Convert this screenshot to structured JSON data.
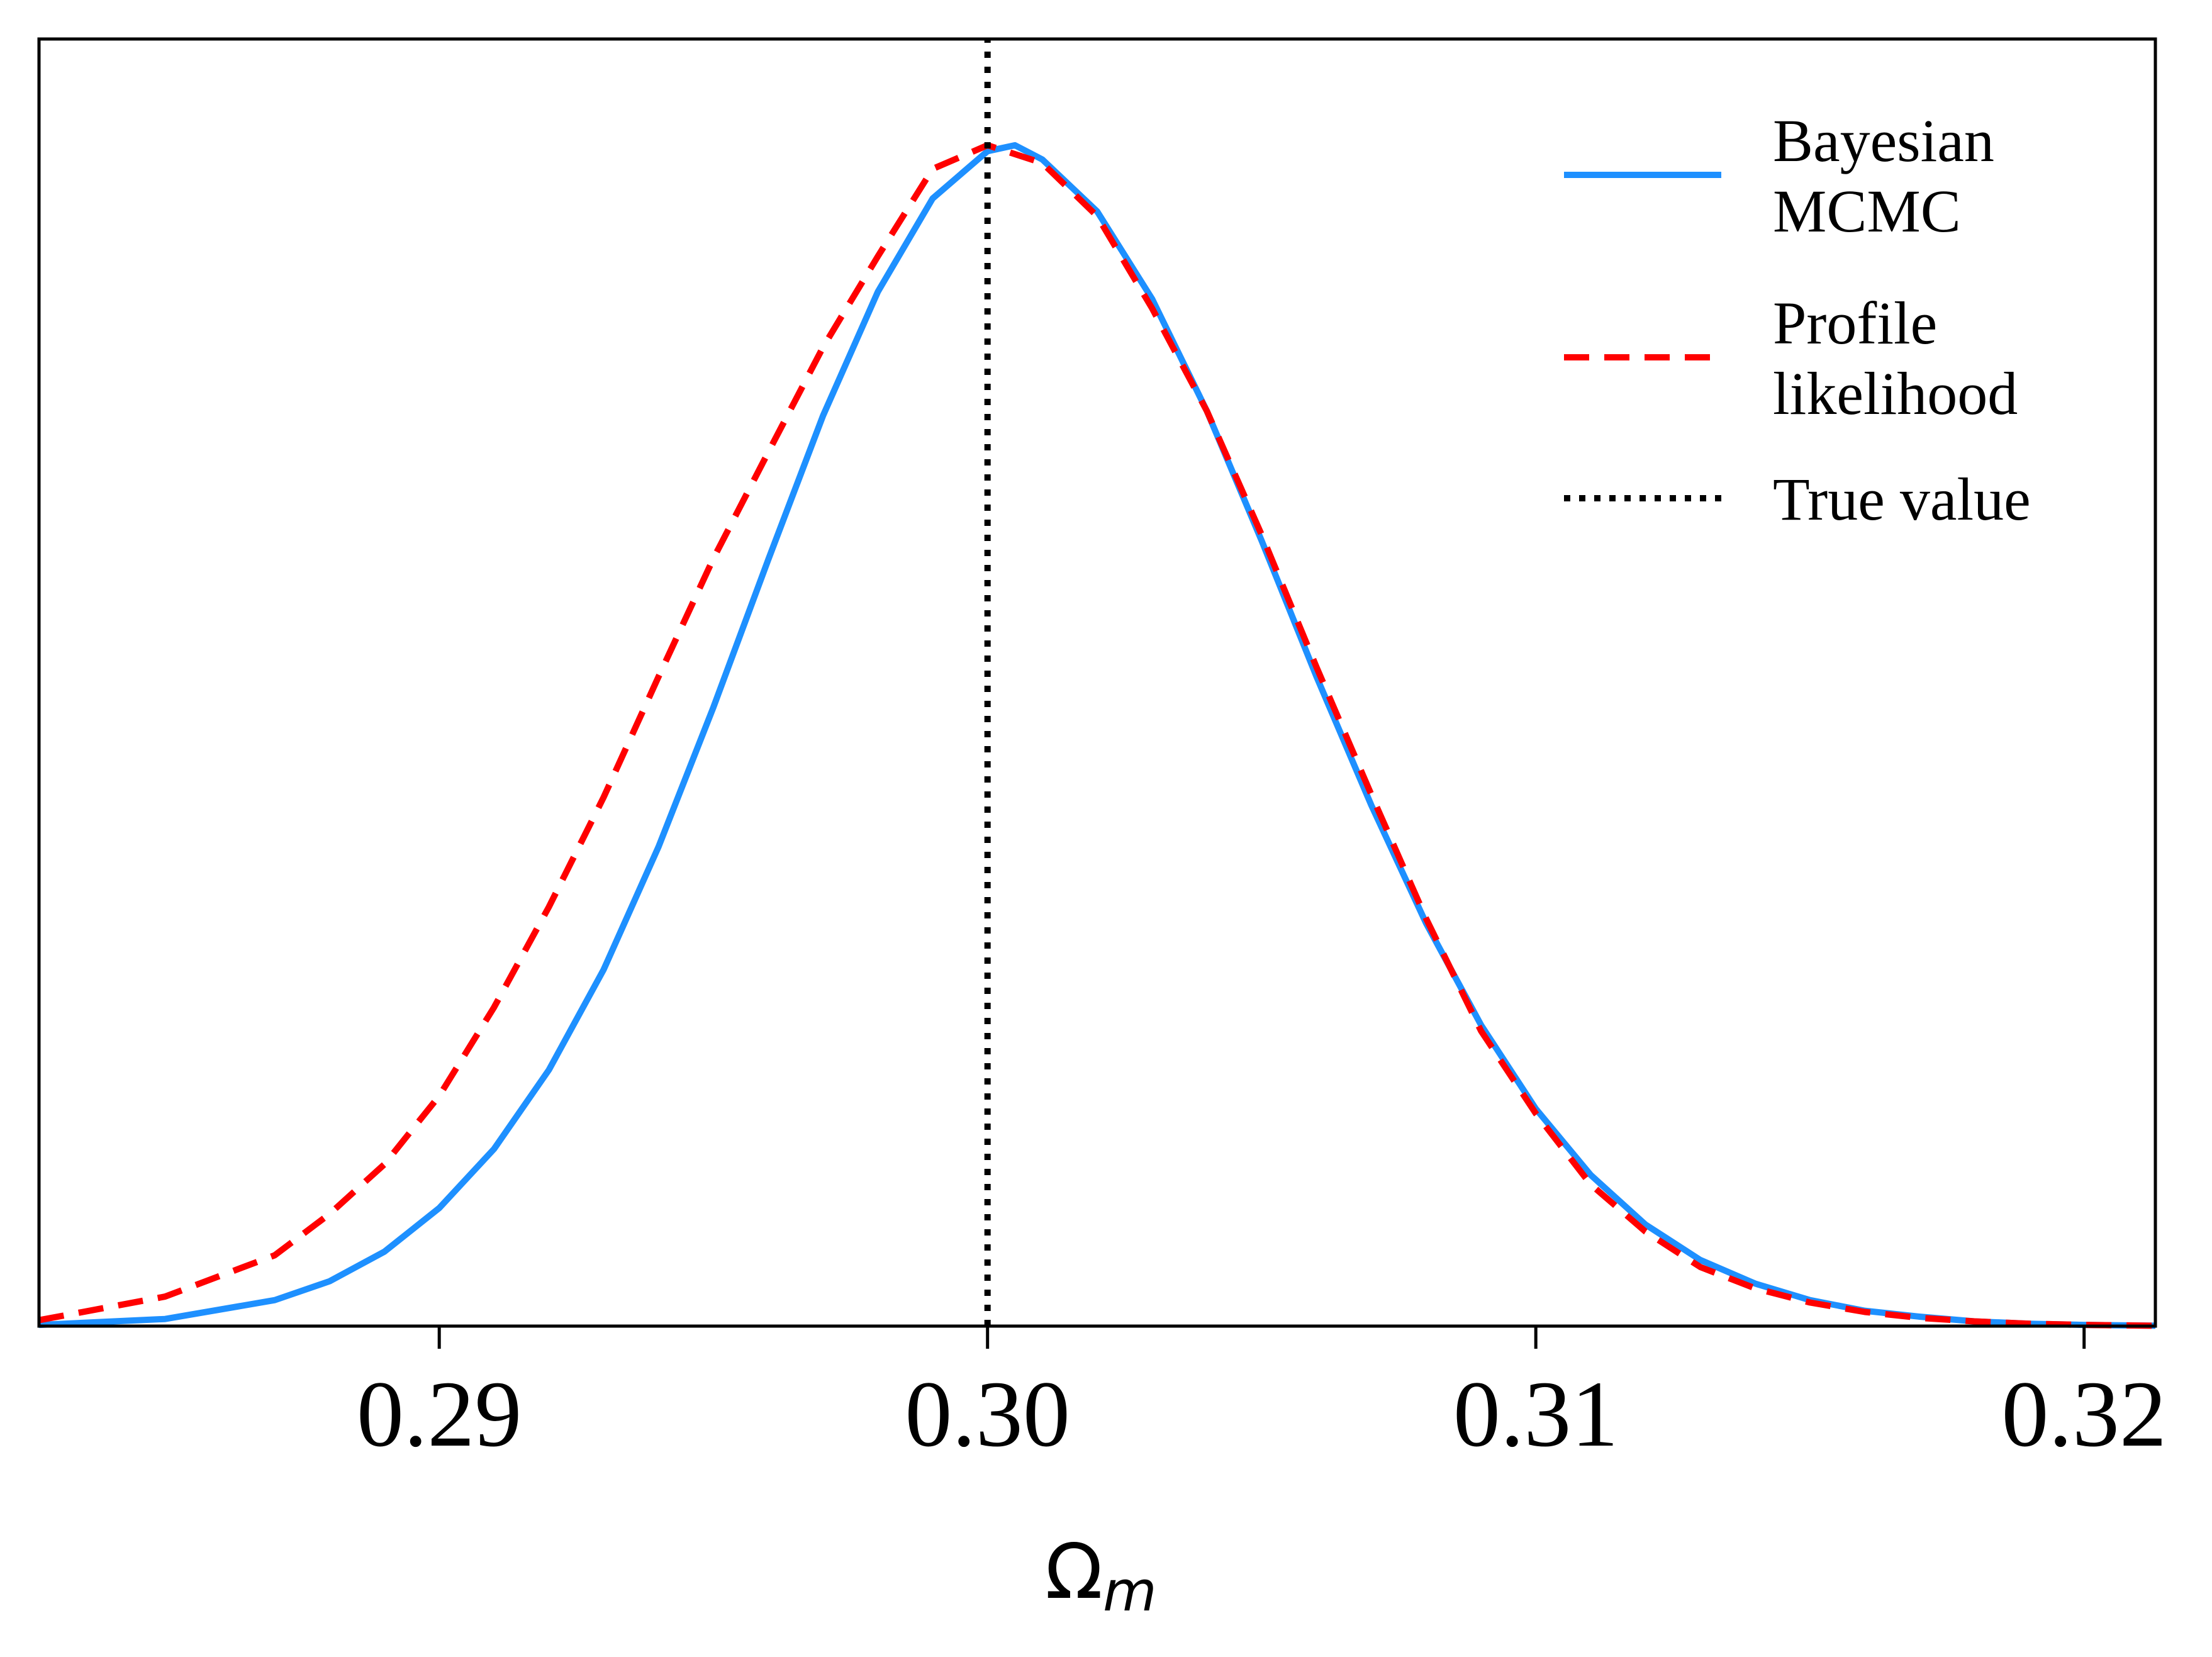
{
  "chart_data": {
    "type": "line",
    "xlabel_main": "Ω",
    "xlabel_sub": "m",
    "xlim": [
      0.2827,
      0.3213
    ],
    "ylim": [
      0,
      1.09
    ],
    "x_ticks": [
      0.29,
      0.3,
      0.31,
      0.32
    ],
    "x_tick_labels": [
      "0.29",
      "0.30",
      "0.31",
      "0.32"
    ],
    "y_ticks_visible": false,
    "grid": false,
    "legend_position": "top-right",
    "true_value": 0.3,
    "series": [
      {
        "name_lines": [
          "Bayesian",
          "MCMC"
        ],
        "color": "#1e90ff",
        "style": "solid",
        "x": [
          0.2827,
          0.285,
          0.287,
          0.288,
          0.289,
          0.29,
          0.291,
          0.292,
          0.293,
          0.294,
          0.295,
          0.296,
          0.297,
          0.298,
          0.299,
          0.3,
          0.3005,
          0.301,
          0.302,
          0.303,
          0.304,
          0.305,
          0.306,
          0.307,
          0.308,
          0.309,
          0.31,
          0.311,
          0.312,
          0.313,
          0.314,
          0.315,
          0.316,
          0.317,
          0.318,
          0.319,
          0.32,
          0.3213
        ],
        "y": [
          0.001,
          0.006,
          0.022,
          0.038,
          0.063,
          0.1,
          0.15,
          0.217,
          0.302,
          0.406,
          0.524,
          0.649,
          0.771,
          0.876,
          0.955,
          0.995,
          1.0,
          0.988,
          0.944,
          0.87,
          0.775,
          0.665,
          0.55,
          0.441,
          0.341,
          0.255,
          0.184,
          0.128,
          0.086,
          0.056,
          0.036,
          0.022,
          0.013,
          0.008,
          0.004,
          0.002,
          0.001,
          0.0003
        ]
      },
      {
        "name_lines": [
          "Profile",
          "likelihood"
        ],
        "color": "#ff0000",
        "style": "dashed",
        "x": [
          0.2827,
          0.285,
          0.287,
          0.288,
          0.289,
          0.29,
          0.291,
          0.292,
          0.293,
          0.294,
          0.295,
          0.296,
          0.297,
          0.298,
          0.299,
          0.3,
          0.301,
          0.302,
          0.303,
          0.304,
          0.305,
          0.306,
          0.307,
          0.308,
          0.309,
          0.31,
          0.311,
          0.312,
          0.313,
          0.314,
          0.315,
          0.316,
          0.317,
          0.318,
          0.319,
          0.32,
          0.3213
        ],
        "y": [
          0.005,
          0.025,
          0.06,
          0.095,
          0.137,
          0.195,
          0.27,
          0.355,
          0.448,
          0.55,
          0.65,
          0.74,
          0.829,
          0.906,
          0.98,
          1.0,
          0.985,
          0.94,
          0.862,
          0.775,
          0.67,
          0.558,
          0.45,
          0.345,
          0.25,
          0.18,
          0.12,
          0.08,
          0.05,
          0.032,
          0.02,
          0.012,
          0.007,
          0.004,
          0.002,
          0.001,
          0.0003
        ]
      },
      {
        "name_lines": [
          "True value"
        ],
        "color": "#000000",
        "style": "dotted",
        "x": [
          0.3,
          0.3
        ],
        "y": [
          0,
          1.09
        ]
      }
    ]
  }
}
